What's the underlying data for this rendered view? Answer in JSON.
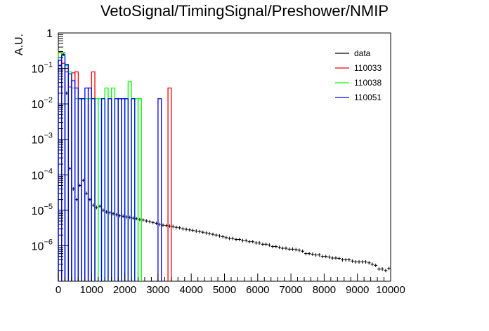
{
  "chart_data": {
    "type": "histogram",
    "title": "VetoSignal/TimingSignal/Preshower/NMIP",
    "xlabel": "",
    "ylabel": "A.U.",
    "xlim": [
      0,
      10000
    ],
    "ylim": [
      1e-07,
      1
    ],
    "yscale": "log",
    "bin_width": 100,
    "x_ticks": [
      0,
      1000,
      2000,
      3000,
      4000,
      5000,
      6000,
      7000,
      8000,
      9000,
      10000
    ],
    "x_tick_labels": [
      "0",
      "1000",
      "2000",
      "3000",
      "4000",
      "5000",
      "6000",
      "7000",
      "8000",
      "9000",
      "10000"
    ],
    "y_ticks": [
      1e-06,
      1e-05,
      0.0001,
      0.001,
      0.01,
      0.1,
      1
    ],
    "y_tick_labels": [
      {
        "base": "10",
        "exp": "−6"
      },
      {
        "base": "10",
        "exp": "−5"
      },
      {
        "base": "10",
        "exp": "−4"
      },
      {
        "base": "10",
        "exp": "−3"
      },
      {
        "base": "10",
        "exp": "−2"
      },
      {
        "base": "10",
        "exp": "−1"
      },
      {
        "base": "1",
        "exp": ""
      }
    ],
    "legend_position": "top-right",
    "grid": false,
    "series": [
      {
        "name": "data",
        "color": "#000000",
        "style": "points",
        "points": [
          [
            50,
            0.12
          ],
          [
            150,
            0.25
          ],
          [
            250,
            0.02
          ],
          [
            350,
            0.00015
          ],
          [
            450,
            4e-05
          ],
          [
            550,
            2e-05
          ],
          [
            650,
            5e-05
          ],
          [
            750,
            7e-05
          ],
          [
            850,
            3e-05
          ],
          [
            950,
            2e-05
          ],
          [
            1050,
            1.4e-05
          ],
          [
            1150,
            1.2e-05
          ],
          [
            1250,
            1.3e-05
          ],
          [
            1350,
            1e-05
          ],
          [
            1450,
            9e-06
          ],
          [
            1550,
            8.5e-06
          ],
          [
            1650,
            8e-06
          ],
          [
            1750,
            7.5e-06
          ],
          [
            1850,
            7e-06
          ],
          [
            1950,
            6.8e-06
          ],
          [
            2050,
            6.5e-06
          ],
          [
            2150,
            6.3e-06
          ],
          [
            2250,
            6e-06
          ],
          [
            2350,
            5.8e-06
          ],
          [
            2450,
            5.5e-06
          ],
          [
            2550,
            5.3e-06
          ],
          [
            2650,
            5e-06
          ],
          [
            2750,
            4.8e-06
          ],
          [
            2850,
            4.5e-06
          ],
          [
            2950,
            4.3e-06
          ],
          [
            3050,
            4e-06
          ],
          [
            3150,
            3.8e-06
          ],
          [
            3250,
            3.7e-06
          ],
          [
            3350,
            3.6e-06
          ],
          [
            3450,
            3.5e-06
          ],
          [
            3550,
            3.3e-06
          ],
          [
            3650,
            3.2e-06
          ],
          [
            3750,
            3e-06
          ],
          [
            3850,
            2.9e-06
          ],
          [
            3950,
            2.8e-06
          ],
          [
            4050,
            2.7e-06
          ],
          [
            4150,
            2.6e-06
          ],
          [
            4250,
            2.5e-06
          ],
          [
            4350,
            2.4e-06
          ],
          [
            4450,
            2.3e-06
          ],
          [
            4550,
            2.2e-06
          ],
          [
            4650,
            2.1e-06
          ],
          [
            4750,
            2e-06
          ],
          [
            4850,
            1.9e-06
          ],
          [
            4950,
            1.8e-06
          ],
          [
            5050,
            1.7e-06
          ],
          [
            5150,
            1.6e-06
          ],
          [
            5250,
            1.6e-06
          ],
          [
            5350,
            1.5e-06
          ],
          [
            5450,
            1.5e-06
          ],
          [
            5550,
            1.4e-06
          ],
          [
            5650,
            1.4e-06
          ],
          [
            5750,
            1.3e-06
          ],
          [
            5850,
            1.3e-06
          ],
          [
            5950,
            1.2e-06
          ],
          [
            6050,
            1.2e-06
          ],
          [
            6150,
            1.1e-06
          ],
          [
            6250,
            1.1e-06
          ],
          [
            6350,
            1.05e-06
          ],
          [
            6450,
            9.5e-07
          ],
          [
            6550,
            9.5e-07
          ],
          [
            6650,
            9e-07
          ],
          [
            6750,
            8.5e-07
          ],
          [
            6850,
            8.5e-07
          ],
          [
            6950,
            8e-07
          ],
          [
            7050,
            8e-07
          ],
          [
            7150,
            7.8e-07
          ],
          [
            7250,
            7.5e-07
          ],
          [
            7350,
            7e-07
          ],
          [
            7450,
            6e-07
          ],
          [
            7550,
            6e-07
          ],
          [
            7650,
            5.8e-07
          ],
          [
            7750,
            5.5e-07
          ],
          [
            7850,
            5.5e-07
          ],
          [
            7950,
            5e-07
          ],
          [
            8050,
            5e-07
          ],
          [
            8150,
            4.8e-07
          ],
          [
            8250,
            4.5e-07
          ],
          [
            8350,
            4.5e-07
          ],
          [
            8450,
            4.4e-07
          ],
          [
            8550,
            4e-07
          ],
          [
            8650,
            4e-07
          ],
          [
            8750,
            4e-07
          ],
          [
            8850,
            3.7e-07
          ],
          [
            8950,
            3.5e-07
          ],
          [
            9050,
            3.5e-07
          ],
          [
            9150,
            3.5e-07
          ],
          [
            9250,
            3.5e-07
          ],
          [
            9350,
            3.3e-07
          ],
          [
            9450,
            3e-07
          ],
          [
            9550,
            2.8e-07
          ],
          [
            9650,
            2.2e-07
          ],
          [
            9750,
            2.2e-07
          ],
          [
            9850,
            2e-07
          ],
          [
            9950,
            2.3e-07
          ]
        ]
      },
      {
        "name": "110033",
        "color": "#ff0000",
        "style": "step",
        "bins": [
          [
            0,
            100,
            0.28
          ],
          [
            100,
            200,
            0.14
          ],
          [
            200,
            300,
            0.08
          ],
          [
            300,
            400,
            0.03
          ],
          [
            400,
            500,
            0.075
          ],
          [
            500,
            600,
            0.08
          ],
          [
            700,
            800,
            0.014
          ],
          [
            900,
            1000,
            0.014
          ],
          [
            1000,
            1100,
            0.08
          ],
          [
            3300,
            3400,
            0.028
          ]
        ]
      },
      {
        "name": "110038",
        "color": "#00ff00",
        "style": "step",
        "bins": [
          [
            0,
            100,
            0.3
          ],
          [
            100,
            200,
            0.28
          ],
          [
            200,
            300,
            0.12
          ],
          [
            300,
            400,
            0.08
          ],
          [
            400,
            500,
            0.028
          ],
          [
            500,
            600,
            0.014
          ],
          [
            600,
            700,
            0.014
          ],
          [
            700,
            800,
            0.014
          ],
          [
            800,
            900,
            0.014
          ],
          [
            900,
            1000,
            0.014
          ],
          [
            1000,
            1100,
            0.014
          ],
          [
            1100,
            1200,
            0.014
          ],
          [
            1200,
            1300,
            0.014
          ],
          [
            1300,
            1400,
            0.014
          ],
          [
            1400,
            1500,
            0.028
          ],
          [
            1500,
            1600,
            0.014
          ],
          [
            1600,
            1700,
            0.028
          ],
          [
            1700,
            1800,
            0.014
          ],
          [
            1800,
            1900,
            0.014
          ],
          [
            1900,
            2000,
            0.014
          ],
          [
            2000,
            2100,
            0.014
          ],
          [
            2100,
            2200,
            0.042
          ],
          [
            2200,
            2300,
            0.014
          ],
          [
            2300,
            2400,
            0.014
          ],
          [
            2400,
            2500,
            0.014
          ]
        ]
      },
      {
        "name": "110051",
        "color": "#0000ff",
        "style": "step",
        "bins": [
          [
            0,
            100,
            0.17
          ],
          [
            100,
            200,
            0.24
          ],
          [
            200,
            300,
            0.13
          ],
          [
            300,
            400,
            0.07
          ],
          [
            400,
            500,
            0.045
          ],
          [
            500,
            600,
            0.028
          ],
          [
            600,
            700,
            0.014
          ],
          [
            700,
            800,
            0.014
          ],
          [
            800,
            900,
            0.028
          ],
          [
            900,
            1000,
            0.028
          ],
          [
            1000,
            1100,
            0.014
          ],
          [
            1300,
            1400,
            0.014
          ],
          [
            1500,
            1600,
            0.014
          ],
          [
            1700,
            1800,
            0.014
          ],
          [
            1800,
            1900,
            0.014
          ],
          [
            1900,
            2000,
            0.014
          ],
          [
            2000,
            2100,
            0.014
          ],
          [
            2200,
            2300,
            0.014
          ],
          [
            3000,
            3100,
            0.014
          ]
        ]
      }
    ]
  }
}
